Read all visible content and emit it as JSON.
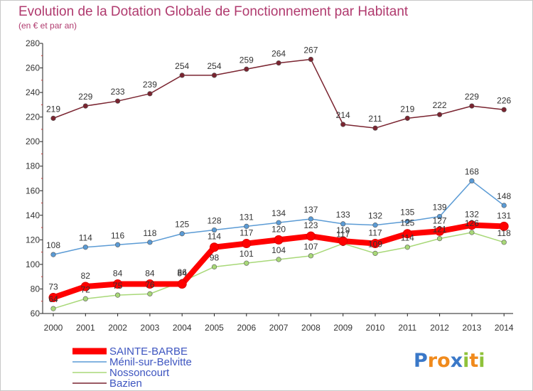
{
  "chart_data": {
    "type": "line",
    "title": "Evolution de la Dotation Globale de Fonctionnement par Habitant",
    "subtitle": "(en € et par an)",
    "xlabel": "",
    "ylabel": "",
    "ylim": [
      60,
      280
    ],
    "yticks": [
      60,
      80,
      100,
      120,
      140,
      160,
      180,
      200,
      220,
      240,
      260,
      280
    ],
    "categories": [
      "2000",
      "2001",
      "2002",
      "2003",
      "2004",
      "2005",
      "2006",
      "2007",
      "2008",
      "2009",
      "2010",
      "2011",
      "2012",
      "2013",
      "2014"
    ],
    "legend_position": "bottom-left",
    "grid": false,
    "series": [
      {
        "name": "Bazien",
        "color": "#7a2430",
        "values": [
          219,
          229,
          233,
          239,
          254,
          254,
          259,
          264,
          267,
          214,
          211,
          219,
          222,
          229,
          226
        ]
      },
      {
        "name": "Ménil-sur-Belvitte",
        "color": "#5b9bd5",
        "values": [
          108,
          114,
          116,
          118,
          125,
          128,
          131,
          134,
          137,
          133,
          132,
          135,
          139,
          168,
          148
        ]
      },
      {
        "name": "Nossoncourt",
        "color": "#a8d878",
        "values": [
          64,
          72,
          75,
          76,
          86,
          98,
          101,
          104,
          107,
          117,
          109,
          114,
          121,
          126,
          118
        ]
      },
      {
        "name": "SAINTE-BARBE",
        "color": "#ff0000",
        "values": [
          73,
          82,
          84,
          84,
          84,
          114,
          117,
          120,
          123,
          119,
          117,
          125,
          127,
          132,
          131
        ]
      }
    ],
    "legend": [
      "SAINTE-BARBE",
      "Ménil-sur-Belvitte",
      "Nossoncourt",
      "Bazien"
    ]
  },
  "logo": {
    "text": "Proxiti",
    "letters": [
      "P",
      "r",
      "o",
      "x",
      "i",
      "t",
      "i"
    ]
  }
}
